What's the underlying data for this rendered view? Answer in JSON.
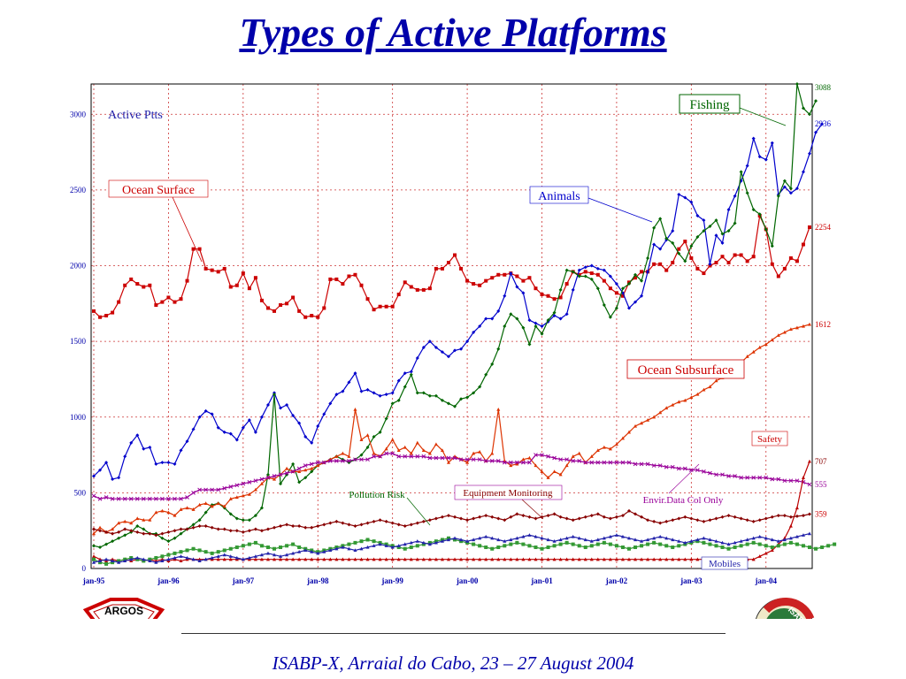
{
  "slide": {
    "title": "Types of Active Platforms",
    "footer": "ISABP-X, Arraial do Cabo, 23 – 27 August 2004",
    "logo_left": "ARGOS",
    "logo_right": "ISABP"
  },
  "chart_data": {
    "type": "line",
    "ylabel": "Active Ptts",
    "ylim": [
      0,
      3200
    ],
    "yticks": [
      0,
      500,
      1000,
      1500,
      2000,
      2500,
      3000
    ],
    "xticks": [
      "jan-95",
      "jan-96",
      "jan-97",
      "jan-98",
      "jan-99",
      "jan-00",
      "jan-01",
      "jan-02",
      "jan-03",
      "jan-04"
    ],
    "grid": true,
    "end_labels": [
      "3088",
      "2936",
      "2254",
      "1612",
      "707",
      "555",
      "359"
    ],
    "series": [
      {
        "name": "Ocean Surface",
        "color": "#cc0000",
        "marker": "square",
        "values": [
          1700,
          1660,
          1670,
          1690,
          1760,
          1870,
          1910,
          1880,
          1860,
          1870,
          1740,
          1760,
          1790,
          1760,
          1780,
          1900,
          2110,
          2110,
          1980,
          1970,
          1960,
          1980,
          1860,
          1870,
          1950,
          1850,
          1920,
          1770,
          1720,
          1700,
          1740,
          1750,
          1790,
          1700,
          1660,
          1670,
          1660,
          1720,
          1910,
          1910,
          1880,
          1930,
          1940,
          1870,
          1780,
          1710,
          1730,
          1730,
          1730,
          1810,
          1890,
          1860,
          1840,
          1840,
          1850,
          1980,
          1980,
          2020,
          2070,
          1980,
          1900,
          1880,
          1870,
          1900,
          1920,
          1940,
          1940,
          1950,
          1930,
          1900,
          1920,
          1850,
          1810,
          1800,
          1780,
          1790,
          1880,
          1960,
          1940,
          1960,
          1950,
          1940,
          1900,
          1850,
          1820,
          1800,
          1890,
          1920,
          1960,
          1960,
          2010,
          2010,
          1970,
          2020,
          2110,
          2160,
          2050,
          1980,
          1950,
          2000,
          2020,
          2060,
          2020,
          2070,
          2070,
          2030,
          2060,
          2330,
          2240,
          2010,
          1930,
          1980,
          2050,
          2030,
          2140,
          2254
        ]
      },
      {
        "name": "Animals",
        "color": "#0000cc",
        "marker": "diamond",
        "values": [
          610,
          650,
          700,
          590,
          600,
          740,
          830,
          880,
          790,
          800,
          690,
          700,
          700,
          690,
          780,
          840,
          920,
          1000,
          1040,
          1020,
          930,
          900,
          890,
          850,
          930,
          980,
          900,
          1000,
          1080,
          1160,
          1060,
          1080,
          1010,
          960,
          870,
          830,
          940,
          1020,
          1090,
          1150,
          1170,
          1230,
          1290,
          1170,
          1180,
          1160,
          1140,
          1150,
          1160,
          1240,
          1290,
          1300,
          1390,
          1460,
          1500,
          1460,
          1430,
          1400,
          1440,
          1450,
          1500,
          1560,
          1600,
          1650,
          1650,
          1700,
          1800,
          1950,
          1860,
          1820,
          1640,
          1620,
          1600,
          1630,
          1670,
          1650,
          1680,
          1840,
          1970,
          1990,
          2000,
          1980,
          1970,
          1930,
          1880,
          1820,
          1720,
          1760,
          1800,
          1960,
          2140,
          2110,
          2170,
          2230,
          2470,
          2450,
          2420,
          2330,
          2300,
          2010,
          2200,
          2150,
          2370,
          2460,
          2560,
          2660,
          2840,
          2720,
          2700,
          2810,
          2470,
          2520,
          2480,
          2510,
          2620,
          2740,
          2880,
          2936
        ]
      },
      {
        "name": "Fishing",
        "color": "#006600",
        "marker": "diamond",
        "values": [
          150,
          140,
          160,
          180,
          200,
          220,
          240,
          280,
          260,
          230,
          230,
          200,
          180,
          200,
          230,
          260,
          290,
          320,
          370,
          420,
          430,
          400,
          360,
          330,
          320,
          320,
          350,
          400,
          620,
          1150,
          560,
          620,
          690,
          570,
          600,
          640,
          680,
          700,
          720,
          740,
          720,
          700,
          720,
          750,
          800,
          870,
          900,
          990,
          1090,
          1110,
          1200,
          1280,
          1160,
          1160,
          1140,
          1140,
          1110,
          1090,
          1070,
          1120,
          1130,
          1160,
          1200,
          1280,
          1350,
          1450,
          1600,
          1680,
          1650,
          1590,
          1480,
          1600,
          1550,
          1640,
          1690,
          1840,
          1970,
          1960,
          1930,
          1930,
          1910,
          1850,
          1740,
          1660,
          1720,
          1850,
          1880,
          1940,
          1900,
          2050,
          2250,
          2310,
          2180,
          2150,
          2080,
          2030,
          2130,
          2190,
          2230,
          2260,
          2300,
          2210,
          2230,
          2280,
          2620,
          2480,
          2370,
          2340,
          2240,
          2130,
          2460,
          2560,
          2510,
          3200,
          3040,
          3000,
          3088
        ]
      },
      {
        "name": "Ocean Subsurface",
        "color": "#dd3300",
        "marker": "triangle",
        "values": [
          230,
          270,
          240,
          260,
          300,
          310,
          300,
          330,
          320,
          320,
          370,
          380,
          370,
          350,
          390,
          400,
          390,
          420,
          430,
          410,
          430,
          410,
          460,
          470,
          480,
          490,
          520,
          560,
          600,
          590,
          620,
          660,
          640,
          640,
          650,
          660,
          680,
          700,
          720,
          740,
          760,
          740,
          1050,
          850,
          880,
          760,
          740,
          790,
          850,
          780,
          800,
          760,
          830,
          780,
          760,
          820,
          780,
          700,
          740,
          720,
          700,
          760,
          770,
          710,
          760,
          1050,
          710,
          680,
          690,
          720,
          730,
          680,
          640,
          600,
          640,
          620,
          680,
          740,
          760,
          700,
          740,
          780,
          800,
          790,
          820,
          860,
          900,
          940,
          960,
          980,
          1000,
          1030,
          1060,
          1080,
          1100,
          1110,
          1130,
          1150,
          1180,
          1200,
          1240,
          1260,
          1290,
          1320,
          1360,
          1400,
          1430,
          1460,
          1480,
          1510,
          1540,
          1560,
          1580,
          1590,
          1600,
          1612
        ]
      },
      {
        "name": "Envir.Data Col Only",
        "color": "#990099",
        "marker": "x",
        "values": [
          480,
          460,
          470,
          460,
          460,
          460,
          460,
          460,
          460,
          460,
          460,
          460,
          460,
          460,
          460,
          470,
          500,
          520,
          520,
          520,
          520,
          530,
          540,
          550,
          560,
          570,
          580,
          590,
          600,
          610,
          620,
          630,
          640,
          660,
          680,
          690,
          700,
          700,
          710,
          710,
          710,
          710,
          720,
          720,
          720,
          740,
          740,
          760,
          760,
          740,
          740,
          740,
          740,
          740,
          730,
          730,
          730,
          730,
          730,
          720,
          720,
          720,
          720,
          710,
          710,
          710,
          700,
          700,
          700,
          700,
          700,
          750,
          750,
          740,
          730,
          720,
          720,
          710,
          710,
          700,
          700,
          700,
          700,
          700,
          700,
          700,
          700,
          690,
          690,
          690,
          680,
          680,
          670,
          670,
          660,
          660,
          650,
          650,
          640,
          630,
          620,
          620,
          610,
          610,
          600,
          600,
          600,
          600,
          600,
          590,
          590,
          580,
          580,
          580,
          570,
          555
        ]
      },
      {
        "name": "Safety",
        "color": "#bb0000",
        "marker": "triangle",
        "values": [
          80,
          60,
          50,
          60,
          50,
          60,
          50,
          60,
          50,
          60,
          50,
          60,
          50,
          60,
          50,
          60,
          60,
          60,
          60,
          60,
          60,
          60,
          60,
          60,
          60,
          60,
          60,
          60,
          60,
          60,
          60,
          60,
          60,
          60,
          60,
          60,
          60,
          60,
          60,
          60,
          60,
          60,
          60,
          60,
          60,
          60,
          60,
          60,
          60,
          60,
          60,
          60,
          60,
          60,
          60,
          60,
          60,
          60,
          60,
          60,
          60,
          60,
          60,
          60,
          60,
          60,
          60,
          60,
          60,
          60,
          60,
          60,
          60,
          60,
          60,
          60,
          60,
          60,
          60,
          60,
          60,
          60,
          60,
          60,
          60,
          60,
          60,
          60,
          60,
          60,
          60,
          60,
          60,
          60,
          60,
          60,
          60,
          60,
          60,
          60,
          60,
          60,
          60,
          60,
          60,
          60,
          60,
          80,
          100,
          120,
          160,
          200,
          280,
          400,
          600,
          707
        ]
      },
      {
        "name": "Equipment Monitoring",
        "color": "#880000",
        "marker": "diamond",
        "values": [
          260,
          250,
          240,
          230,
          240,
          260,
          250,
          240,
          230,
          230,
          220,
          230,
          240,
          250,
          260,
          260,
          270,
          280,
          280,
          270,
          260,
          260,
          250,
          250,
          240,
          250,
          260,
          250,
          260,
          270,
          280,
          290,
          280,
          280,
          270,
          270,
          280,
          290,
          300,
          310,
          300,
          290,
          280,
          290,
          300,
          310,
          320,
          310,
          300,
          290,
          280,
          290,
          300,
          310,
          320,
          330,
          340,
          350,
          340,
          330,
          320,
          330,
          340,
          350,
          340,
          330,
          320,
          340,
          360,
          350,
          340,
          330,
          340,
          350,
          360,
          340,
          330,
          320,
          330,
          340,
          350,
          360,
          340,
          330,
          340,
          350,
          380,
          360,
          340,
          320,
          310,
          300,
          310,
          320,
          330,
          340,
          330,
          320,
          310,
          320,
          330,
          340,
          350,
          340,
          330,
          320,
          310,
          320,
          330,
          340,
          350,
          350,
          340,
          345,
          350,
          359
        ]
      },
      {
        "name": "Pollution Risk",
        "color": "#339933",
        "marker": "square",
        "values": [
          60,
          40,
          30,
          40,
          50,
          60,
          70,
          60,
          50,
          60,
          70,
          80,
          90,
          100,
          110,
          120,
          130,
          120,
          110,
          100,
          110,
          120,
          130,
          140,
          150,
          160,
          170,
          150,
          140,
          130,
          140,
          150,
          160,
          140,
          130,
          120,
          110,
          120,
          130,
          140,
          150,
          160,
          170,
          180,
          190,
          180,
          170,
          160,
          150,
          140,
          130,
          140,
          150,
          160,
          170,
          180,
          190,
          200,
          190,
          180,
          170,
          160,
          150,
          140,
          130,
          140,
          150,
          160,
          170,
          160,
          150,
          140,
          130,
          140,
          150,
          160,
          170,
          160,
          150,
          140,
          150,
          160,
          170,
          160,
          150,
          140,
          130,
          140,
          150,
          160,
          170,
          160,
          150,
          140,
          150,
          160,
          170,
          180,
          170,
          160,
          150,
          140,
          130,
          140,
          150,
          160,
          170,
          160,
          150,
          140,
          150,
          160,
          170,
          160,
          150,
          140,
          130,
          140,
          150,
          160
        ]
      },
      {
        "name": "Mobiles",
        "color": "#2222aa",
        "marker": "triangle",
        "values": [
          40,
          50,
          60,
          50,
          40,
          50,
          60,
          70,
          60,
          50,
          40,
          50,
          60,
          70,
          80,
          70,
          60,
          50,
          60,
          70,
          80,
          90,
          80,
          70,
          60,
          70,
          80,
          90,
          100,
          90,
          80,
          90,
          100,
          110,
          120,
          110,
          100,
          110,
          120,
          130,
          140,
          130,
          120,
          130,
          140,
          150,
          160,
          150,
          140,
          150,
          160,
          170,
          180,
          170,
          160,
          170,
          180,
          190,
          200,
          190,
          180,
          190,
          200,
          210,
          200,
          190,
          180,
          190,
          200,
          210,
          220,
          210,
          200,
          190,
          180,
          190,
          200,
          210,
          200,
          190,
          180,
          190,
          200,
          210,
          220,
          210,
          200,
          190,
          180,
          190,
          200,
          210,
          200,
          190,
          180,
          170,
          180,
          190,
          200,
          190,
          180,
          170,
          160,
          170,
          180,
          190,
          200,
          210,
          200,
          190,
          180,
          190,
          200,
          210,
          220,
          230
        ]
      }
    ],
    "callouts": {
      "ocean_surface": "Ocean Surface",
      "animals": "Animals",
      "fishing": "Fishing",
      "ocean_subsurface": "Ocean Subsurface",
      "safety": "Safety",
      "pollution_risk": "Pollution Risk",
      "equipment_monitoring": "Equipment Monitoring",
      "envir": "Envir.Data Col Only",
      "mobiles": "Mobiles"
    }
  }
}
